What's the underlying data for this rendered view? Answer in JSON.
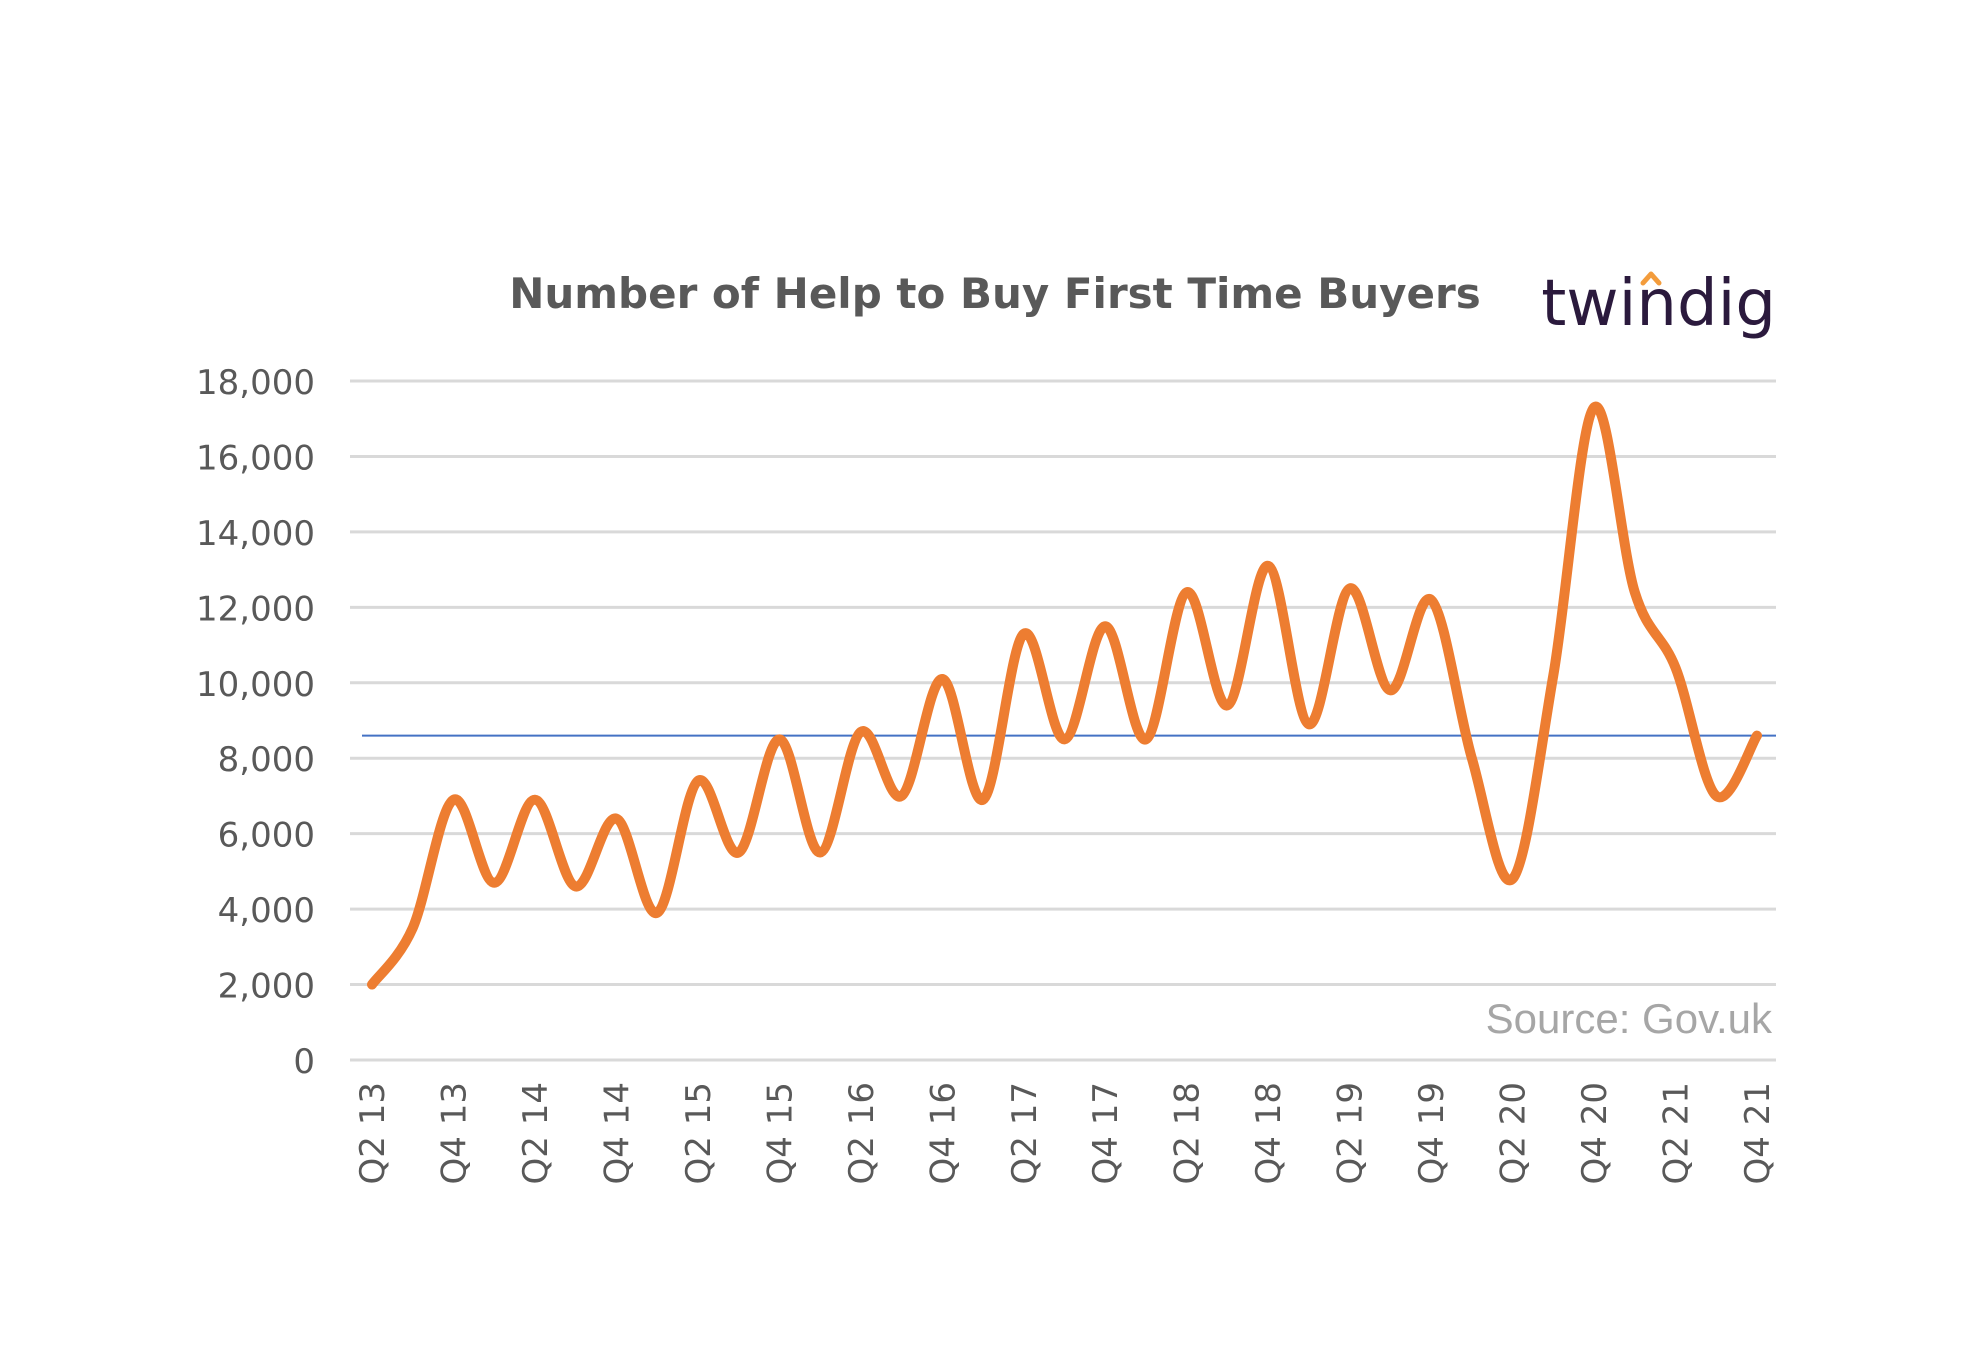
{
  "chart_data": {
    "type": "line",
    "title": "Number of Help to Buy First Time Buyers",
    "source": "Source: Gov.uk",
    "logo": "twindig",
    "x": [
      "Q2 13",
      "Q3 13",
      "Q4 13",
      "Q1 14",
      "Q2 14",
      "Q3 14",
      "Q4 14",
      "Q1 15",
      "Q2 15",
      "Q3 15",
      "Q4 15",
      "Q1 16",
      "Q2 16",
      "Q3 16",
      "Q4 16",
      "Q1 17",
      "Q2 17",
      "Q3 17",
      "Q4 17",
      "Q1 18",
      "Q2 18",
      "Q3 18",
      "Q4 18",
      "Q1 19",
      "Q2 19",
      "Q3 19",
      "Q4 19",
      "Q1 20",
      "Q2 20",
      "Q3 20",
      "Q4 20",
      "Q1 21",
      "Q2 21",
      "Q3 21",
      "Q4 21"
    ],
    "x_tick_labels": [
      "Q2 13",
      "Q4 13",
      "Q2 14",
      "Q4 14",
      "Q2 15",
      "Q4 15",
      "Q2 16",
      "Q4 16",
      "Q2 17",
      "Q4 17",
      "Q2 18",
      "Q4 18",
      "Q2 19",
      "Q4 19",
      "Q2 20",
      "Q4 20",
      "Q2 21",
      "Q4 21"
    ],
    "series": [
      {
        "values": [
          2000,
          3500,
          6900,
          4700,
          6900,
          4600,
          6400,
          3900,
          7400,
          5500,
          8500,
          5500,
          8700,
          7000,
          10100,
          6900,
          11300,
          8500,
          11500,
          8500,
          12400,
          9400,
          13100,
          8900,
          12500,
          9800,
          12200,
          8000,
          4800,
          10200,
          17300,
          12400,
          10400,
          7000,
          8600
        ],
        "color": "#ED7D31"
      }
    ],
    "reference_line": {
      "value": 8600,
      "color": "#4472C4"
    },
    "y_ticks": [
      0,
      2000,
      4000,
      6000,
      8000,
      10000,
      12000,
      14000,
      16000,
      18000
    ],
    "y_tick_labels": [
      "0",
      "2,000",
      "4,000",
      "6,000",
      "8,000",
      "10,000",
      "12,000",
      "14,000",
      "16,000",
      "18,000"
    ],
    "ylim": [
      0,
      18000
    ],
    "grid": true,
    "gridline_color": "#d9d9d9",
    "logo_accent_color": "#F39C3C"
  }
}
